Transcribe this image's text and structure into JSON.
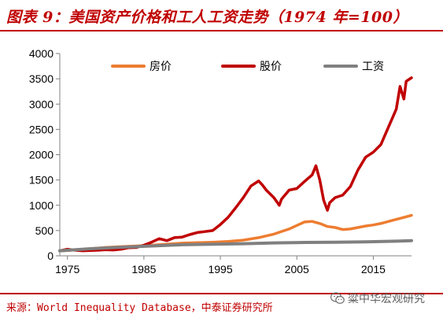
{
  "header": {
    "title": "图表 9：美国资产价格和工人工资走势（1974 年=100）"
  },
  "footer": {
    "source": "来源：World Inequality Database，中泰证券研究所",
    "watermark_text": "粱中华宏观研究",
    "watermark_icon": "wechat-icon"
  },
  "colors": {
    "accent": "#c00000"
  },
  "chart_data": {
    "type": "line",
    "title": "图表 9：美国资产价格和工人工资走势（1974 年=100）",
    "xlabel": "",
    "ylabel": "",
    "xlim": [
      1974,
      2020
    ],
    "ylim": [
      0,
      4000
    ],
    "xticks": [
      1975,
      1985,
      1995,
      2005,
      2015
    ],
    "yticks": [
      0,
      500,
      1000,
      1500,
      2000,
      2500,
      3000,
      3500,
      4000
    ],
    "grid": false,
    "legend_position": "top",
    "series": [
      {
        "name": "房价",
        "color": "#ed7d31",
        "x": [
          1974,
          1976,
          1978,
          1980,
          1982,
          1984,
          1986,
          1988,
          1990,
          1992,
          1994,
          1996,
          1998,
          2000,
          2002,
          2004,
          2005,
          2006,
          2007,
          2008,
          2009,
          2010,
          2011,
          2012,
          2013,
          2014,
          2015,
          2016,
          2017,
          2018,
          2019,
          2020
        ],
        "values": [
          100,
          115,
          140,
          165,
          180,
          195,
          210,
          230,
          250,
          260,
          270,
          285,
          310,
          360,
          430,
          530,
          600,
          670,
          680,
          640,
          580,
          560,
          520,
          530,
          560,
          590,
          610,
          640,
          680,
          720,
          760,
          800
        ]
      },
      {
        "name": "股价",
        "color": "#c00000",
        "x": [
          1974,
          1975,
          1976,
          1977,
          1978,
          1979,
          1980,
          1981,
          1982,
          1983,
          1984,
          1985,
          1986,
          1987,
          1988,
          1989,
          1990,
          1991,
          1992,
          1993,
          1994,
          1995,
          1996,
          1997,
          1998,
          1999,
          2000,
          2000.5,
          2001,
          2002,
          2002.7,
          2003,
          2004,
          2005,
          2006,
          2007,
          2007.5,
          2008,
          2008.5,
          2009,
          2009.3,
          2010,
          2011,
          2012,
          2013,
          2014,
          2015,
          2016,
          2017,
          2018,
          2018.5,
          2019,
          2019.3,
          2019.6,
          2020
        ],
        "values": [
          100,
          130,
          110,
          100,
          105,
          110,
          120,
          115,
          130,
          160,
          165,
          210,
          270,
          340,
          300,
          360,
          370,
          420,
          460,
          480,
          500,
          620,
          760,
          950,
          1150,
          1380,
          1480,
          1400,
          1300,
          1150,
          1000,
          1120,
          1300,
          1330,
          1470,
          1600,
          1780,
          1500,
          1100,
          900,
          1050,
          1150,
          1200,
          1370,
          1700,
          1950,
          2050,
          2200,
          2550,
          2900,
          3350,
          3100,
          3450,
          3480,
          3520
        ]
      },
      {
        "name": "工资",
        "color": "#808080",
        "x": [
          1974,
          1978,
          1982,
          1986,
          1990,
          1994,
          1998,
          2002,
          2006,
          2010,
          2014,
          2018,
          2020
        ],
        "values": [
          100,
          140,
          170,
          195,
          220,
          230,
          240,
          255,
          265,
          270,
          275,
          290,
          300
        ]
      }
    ]
  }
}
